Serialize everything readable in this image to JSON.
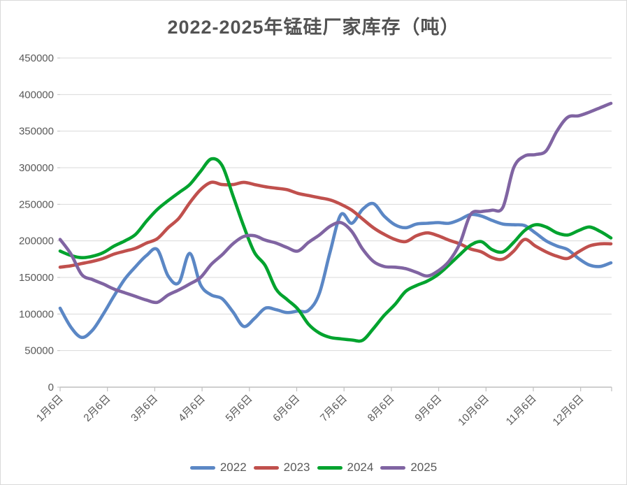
{
  "title": "2022-2025年锰硅厂家库存（吨）",
  "chart_data": {
    "type": "line",
    "title": "2022-2025年锰硅厂家库存（吨）",
    "unit": "吨",
    "grid": "horizontal",
    "legend_position": "bottom",
    "smooth_lines": true,
    "y_axis": {
      "min": 0,
      "max": 450000,
      "tick_interval": 50000,
      "tick_labels": [
        "0",
        "50000",
        "100000",
        "150000",
        "200000",
        "250000",
        "300000",
        "350000",
        "400000",
        "450000"
      ]
    },
    "x_axis": {
      "tick_labels": [
        "1月6日",
        "2月6日",
        "3月6日",
        "4月6日",
        "5月6日",
        "6月6日",
        "7月6日",
        "8月6日",
        "9月6日",
        "10月6日",
        "11月6日",
        "12月6日"
      ],
      "points_per_series": 52,
      "cadence": "weekly"
    },
    "series": [
      {
        "name": "2022",
        "color": "#5b87c5",
        "values": [
          108000,
          82000,
          68000,
          78000,
          100000,
          125000,
          148000,
          165000,
          180000,
          188000,
          152000,
          143000,
          183000,
          140000,
          126000,
          121000,
          103000,
          83000,
          94000,
          108000,
          106000,
          102000,
          104000,
          105000,
          128000,
          185000,
          236000,
          224000,
          243000,
          251000,
          234000,
          222000,
          218000,
          223000,
          224000,
          225000,
          224000,
          229000,
          236000,
          234000,
          228000,
          223000,
          222000,
          221000,
          211000,
          200000,
          193000,
          188000,
          176000,
          167000,
          165000,
          170000
        ]
      },
      {
        "name": "2023",
        "color": "#c0504d",
        "values": [
          164000,
          166000,
          169000,
          172000,
          176000,
          182000,
          186000,
          190000,
          197000,
          203000,
          218000,
          231000,
          252000,
          270000,
          280000,
          277000,
          277000,
          280000,
          277000,
          274000,
          272000,
          270000,
          265000,
          262000,
          259000,
          256000,
          250000,
          242000,
          230000,
          218000,
          209000,
          202000,
          199000,
          207000,
          211000,
          207000,
          201000,
          196000,
          189000,
          185000,
          177000,
          175000,
          186000,
          202000,
          193000,
          185000,
          179000,
          176000,
          185000,
          193000,
          196000,
          196000
        ]
      },
      {
        "name": "2024",
        "color": "#00a32e",
        "values": [
          186000,
          180000,
          177000,
          179000,
          184000,
          193000,
          200000,
          209000,
          227000,
          243000,
          255000,
          266000,
          277000,
          295000,
          312000,
          303000,
          262000,
          220000,
          184000,
          166000,
          134000,
          120000,
          107000,
          86000,
          74000,
          68000,
          66000,
          64500,
          64000,
          80000,
          98000,
          113000,
          131000,
          139000,
          145000,
          154000,
          167000,
          181000,
          194000,
          199000,
          188000,
          185000,
          198000,
          214000,
          222000,
          219000,
          211000,
          208000,
          214000,
          219000,
          213000,
          204000
        ]
      },
      {
        "name": "2025",
        "color": "#8064a2",
        "values": [
          202000,
          182000,
          154000,
          147000,
          141000,
          134000,
          129000,
          124000,
          119000,
          116000,
          126000,
          133000,
          141000,
          150000,
          168000,
          181000,
          196000,
          206000,
          207000,
          201000,
          197000,
          191000,
          186000,
          198000,
          208000,
          220000,
          225000,
          213000,
          189000,
          172000,
          165000,
          164000,
          162000,
          157000,
          152000,
          159000,
          172000,
          196000,
          236000,
          240000,
          242000,
          246000,
          300000,
          316000,
          318000,
          323000,
          350000,
          369000,
          371000,
          376000,
          382000,
          388000
        ]
      }
    ],
    "style": {
      "gridline_color": "#d9d9d9",
      "axis_color": "#bfbfbf",
      "label_color": "#595959",
      "title_color": "#535353",
      "line_width": 4.6
    }
  }
}
